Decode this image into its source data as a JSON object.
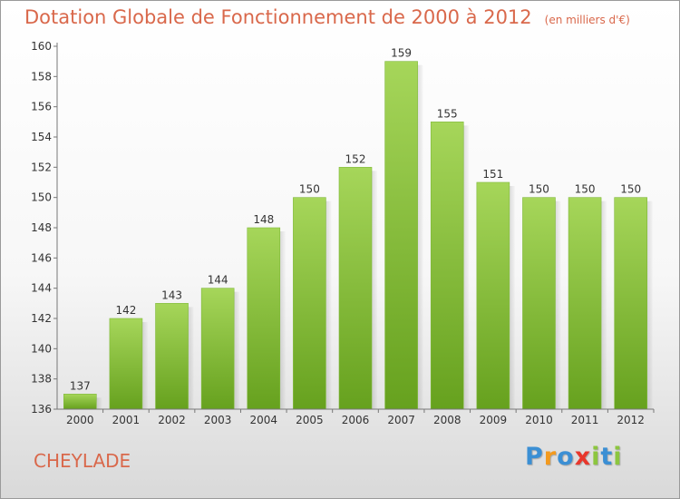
{
  "chart_data": {
    "type": "bar",
    "title": "Dotation Globale de Fonctionnement de 2000 à 2012",
    "subtitle": "(en milliers d'€)",
    "categories": [
      "2000",
      "2001",
      "2002",
      "2003",
      "2004",
      "2005",
      "2006",
      "2007",
      "2008",
      "2009",
      "2010",
      "2011",
      "2012"
    ],
    "values": [
      137,
      142,
      143,
      144,
      148,
      150,
      152,
      159,
      155,
      151,
      150,
      150,
      150
    ],
    "ylim": [
      136,
      160
    ],
    "yticks": [
      136,
      138,
      140,
      142,
      144,
      146,
      148,
      150,
      152,
      154,
      156,
      158,
      160
    ],
    "grid": false,
    "bar_color": "#8cc63f"
  },
  "commune": "CHEYLADE",
  "logo": {
    "letters": [
      "P",
      "r",
      "o",
      "x",
      "i",
      "t",
      "i"
    ],
    "colors": [
      "#3b8fd4",
      "#f39a1e",
      "#3b8fd4",
      "#e8372c",
      "#8cc63f",
      "#3b8fd4",
      "#8cc63f"
    ]
  }
}
